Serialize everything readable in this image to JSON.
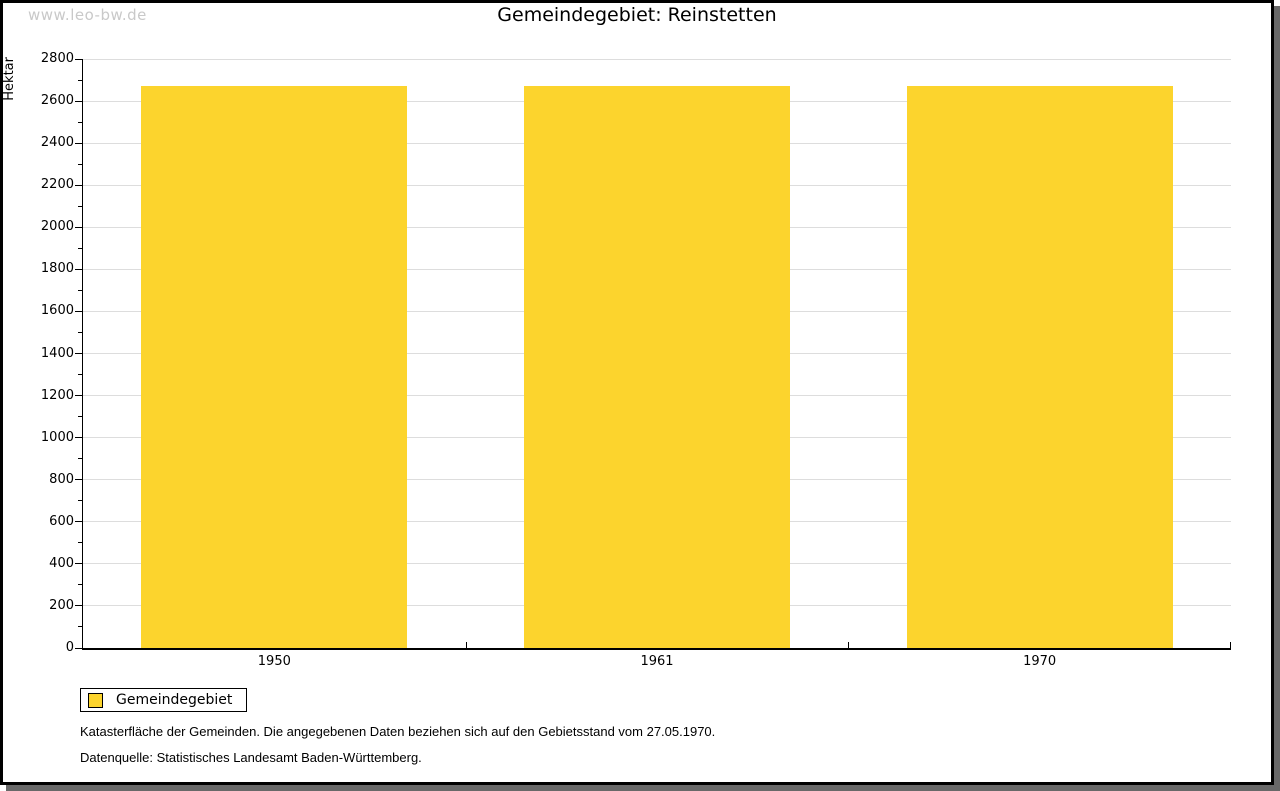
{
  "watermark": "www.leo-bw.de",
  "title": "Gemeindegebiet: Reinstetten",
  "chart_data": {
    "type": "bar",
    "title": "Gemeindegebiet: Reinstetten",
    "categories": [
      "1950",
      "1961",
      "1970"
    ],
    "series": [
      {
        "name": "Gemeindegebiet",
        "values": [
          2672,
          2672,
          2672
        ]
      }
    ],
    "xlabel": "",
    "ylabel": "Hektar",
    "ylim": [
      0,
      2800
    ],
    "ytick_major_step": 200,
    "ytick_minor_step": 100,
    "grid": "horizontal-major",
    "legend_position": "bottom-left",
    "bar_color": "#fcd42d",
    "gridline_color": "#dddddd"
  },
  "legend": {
    "items": [
      {
        "label": "Gemeindegebiet",
        "color": "#fcd42d"
      }
    ]
  },
  "footer": {
    "line1": "Katasterfläche der Gemeinden. Die angegebenen Daten beziehen sich auf den Gebietsstand vom 27.05.1970.",
    "line2": "Datenquelle: Statistisches Landesamt Baden-Württemberg."
  },
  "colors": {
    "bar": "#fcd42d",
    "gridline": "#dddddd",
    "frame_border": "#000000",
    "frame_shadow": "#686868",
    "watermark": "#c9c9c9"
  }
}
